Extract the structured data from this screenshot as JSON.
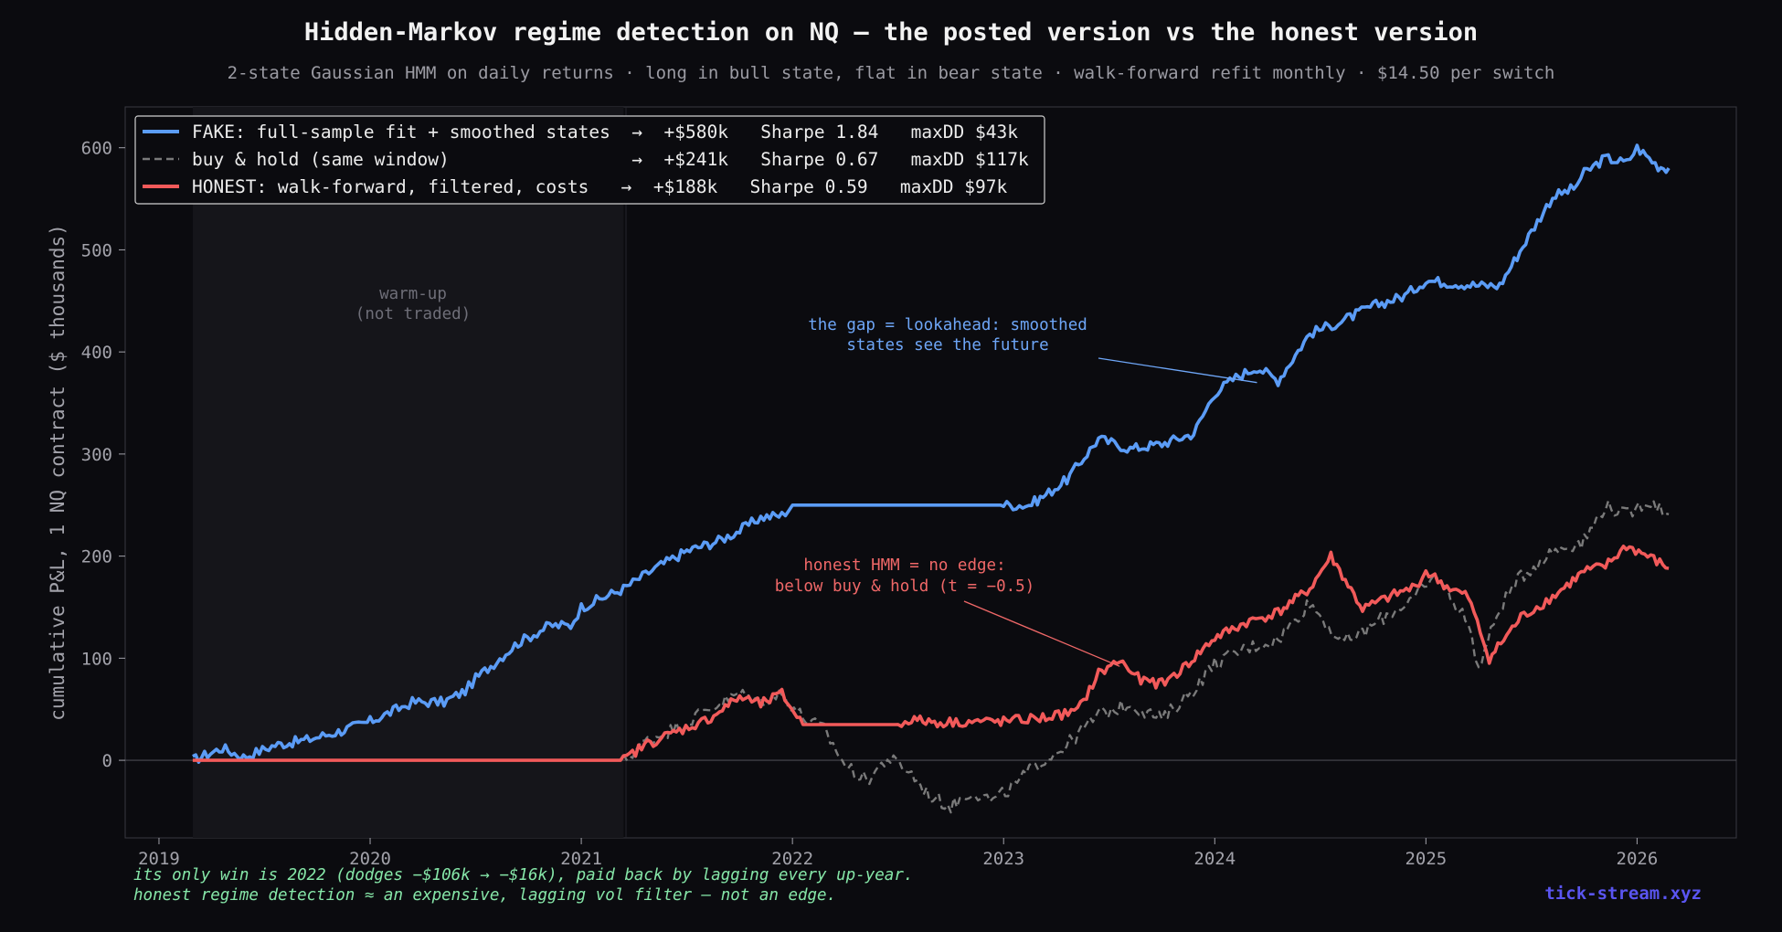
{
  "chart_data": {
    "type": "line",
    "title": "Hidden-Markov regime detection on NQ — the posted version vs the honest version",
    "subtitle": "2-state Gaussian HMM on daily returns · long in bull state, flat in bear state · walk-forward refit monthly · $14.50 per switch",
    "ylabel": "cumulative P&L, 1 NQ contract  ($ thousands)",
    "xlim": [
      2018.84,
      2026.47
    ],
    "ylim": [
      -76,
      640
    ],
    "x_ticks": [
      2019,
      2020,
      2021,
      2022,
      2023,
      2024,
      2025,
      2026
    ],
    "x_tick_labels": [
      "2019",
      "2020",
      "2021",
      "2022",
      "2023",
      "2024",
      "2025",
      "2026"
    ],
    "y_ticks": [
      0,
      100,
      200,
      300,
      400,
      500,
      600
    ],
    "y_tick_labels": [
      "0",
      "100",
      "200",
      "300",
      "400",
      "500",
      "600"
    ],
    "grid": false,
    "legend_position": "top-left",
    "shaded_regions": [
      {
        "x0": 2019.16,
        "x1": 2021.2,
        "label": "warm-up\n(not traded)"
      }
    ],
    "series": [
      {
        "name": "FAKE: full-sample fit + smoothed states  →  +$580k   Sharpe 1.84   maxDD $43k",
        "style": "solid",
        "color": "#5b9cf6",
        "x": [
          2019.16,
          2019.3,
          2019.4,
          2019.55,
          2019.7,
          2019.85,
          2020.0,
          2020.15,
          2020.2,
          2020.35,
          2020.45,
          2020.5,
          2020.7,
          2020.85,
          2020.95,
          2021.0,
          2021.2,
          2021.35,
          2021.5,
          2021.65,
          2021.75,
          2021.85,
          2021.95,
          2022.0,
          2022.5,
          2023.0,
          2023.12,
          2023.2,
          2023.3,
          2023.45,
          2023.6,
          2023.75,
          2023.9,
          2024.0,
          2024.1,
          2024.2,
          2024.3,
          2024.45,
          2024.6,
          2024.75,
          2024.9,
          2025.0,
          2025.1,
          2025.25,
          2025.35,
          2025.5,
          2025.6,
          2025.7,
          2025.75,
          2025.85,
          2025.95,
          2026.0,
          2026.1,
          2026.15
        ],
        "y": [
          0,
          12,
          3,
          15,
          20,
          28,
          38,
          52,
          57,
          57,
          68,
          80,
          115,
          132,
          132,
          150,
          168,
          188,
          205,
          215,
          225,
          238,
          240,
          250,
          250,
          250,
          250,
          260,
          275,
          315,
          305,
          310,
          320,
          360,
          375,
          385,
          372,
          418,
          430,
          445,
          455,
          470,
          468,
          465,
          465,
          518,
          552,
          560,
          575,
          590,
          585,
          600,
          582,
          580
        ]
      },
      {
        "name": "buy & hold (same window)                 →  +$241k   Sharpe 0.67   maxDD $117k",
        "style": "dashed",
        "color": "#7a7a7a",
        "x": [
          2021.2,
          2021.3,
          2021.45,
          2021.6,
          2021.75,
          2021.85,
          2021.95,
          2022.05,
          2022.15,
          2022.25,
          2022.35,
          2022.45,
          2022.55,
          2022.65,
          2022.75,
          2022.85,
          2022.95,
          2023.05,
          2023.15,
          2023.3,
          2023.45,
          2023.6,
          2023.75,
          2023.9,
          2024.0,
          2024.15,
          2024.3,
          2024.45,
          2024.6,
          2024.7,
          2024.8,
          2024.95,
          2025.05,
          2025.2,
          2025.25,
          2025.35,
          2025.45,
          2025.6,
          2025.75,
          2025.85,
          2025.95,
          2026.05,
          2026.15
        ],
        "y": [
          0,
          18,
          32,
          50,
          65,
          58,
          65,
          42,
          30,
          -5,
          -20,
          2,
          -10,
          -35,
          -45,
          -30,
          -40,
          -25,
          -5,
          15,
          45,
          55,
          40,
          70,
          95,
          110,
          118,
          155,
          115,
          125,
          140,
          160,
          180,
          135,
          90,
          150,
          180,
          205,
          215,
          250,
          240,
          255,
          241
        ]
      },
      {
        "name": "HONEST: walk-forward, filtered, costs   →  +$188k   Sharpe 0.59   maxDD $97k",
        "style": "solid",
        "color": "#f25a5a",
        "x": [
          2019.16,
          2021.2,
          2021.3,
          2021.45,
          2021.6,
          2021.75,
          2021.85,
          2021.95,
          2022.05,
          2022.5,
          2022.55,
          2022.7,
          2022.85,
          2023.0,
          2023.2,
          2023.35,
          2023.45,
          2023.55,
          2023.65,
          2023.75,
          2023.85,
          2024.0,
          2024.15,
          2024.3,
          2024.45,
          2024.55,
          2024.7,
          2024.85,
          2024.95,
          2025.0,
          2025.1,
          2025.2,
          2025.3,
          2025.45,
          2025.6,
          2025.75,
          2025.85,
          2025.95,
          2026.05,
          2026.15
        ],
        "y": [
          0,
          0,
          15,
          28,
          40,
          62,
          55,
          65,
          35,
          35,
          40,
          37,
          38,
          38,
          42,
          48,
          85,
          98,
          78,
          75,
          90,
          120,
          135,
          145,
          168,
          200,
          148,
          162,
          170,
          185,
          170,
          160,
          100,
          140,
          160,
          185,
          190,
          210,
          200,
          188
        ]
      }
    ],
    "annotations": [
      {
        "text": [
          "the gap = lookahead: smoothed",
          "states see the future"
        ],
        "color": "#6ea6f7",
        "arrow_to": [
          2024.2,
          370
        ]
      },
      {
        "text": [
          "honest HMM = no edge:",
          "below buy & hold (t = −0.5)"
        ],
        "color": "#f06868",
        "arrow_to": [
          2023.55,
          92
        ]
      }
    ]
  },
  "footer": {
    "line1": "its only win is 2022 (dodges −$106k → −$16k), paid back by lagging every up-year.",
    "line2": "honest regime detection ≈ an expensive, lagging vol filter — not an edge.",
    "brand": "tick-stream.xyz"
  },
  "colors": {
    "background": "#0b0b0f",
    "fake": "#5b9cf6",
    "hold": "#7a7a7a",
    "honest": "#f25a5a",
    "footer_text": "#86e6a8",
    "brand": "#5a55f0"
  }
}
